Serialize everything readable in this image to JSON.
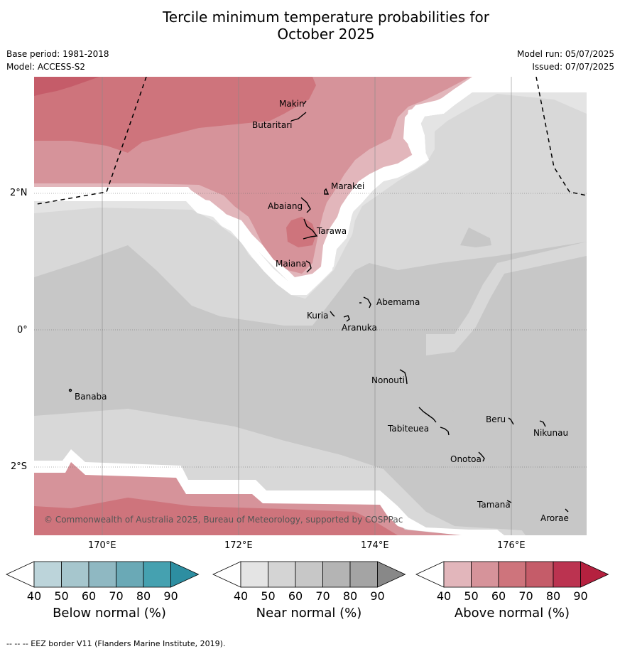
{
  "header": {
    "title_line1": "Tercile minimum temperature probabilities for",
    "title_line2": "October 2025",
    "base_period": "Base period: 1981-2018",
    "model": "Model: ACCESS-S2",
    "model_run": "Model run: 05/07/2025",
    "issued": "Issued: 07/07/2025"
  },
  "map": {
    "lat_labels": [
      "2°N",
      "0°",
      "2°S"
    ],
    "lon_labels": [
      "170°E",
      "172°E",
      "174°E",
      "176°E"
    ],
    "places": [
      "Makin",
      "Butaritari",
      "Marakei",
      "Abaiang",
      "Tarawa",
      "Maiana",
      "Abemama",
      "Kuria",
      "Aranuka",
      "Nonouti",
      "Banaba",
      "Beru",
      "Tabiteuea",
      "Nikunau",
      "Onotoa",
      "Tamana",
      "Arorae"
    ],
    "copyright": "© Commonwealth of Australia 2025, Bureau of Meteorology, supported by COSPPac"
  },
  "colorbars": [
    {
      "label": "Below normal (%)",
      "ticks": [
        "40",
        "50",
        "60",
        "70",
        "80",
        "90"
      ],
      "colors": [
        "#ffffff",
        "#bcd4da",
        "#a6c6cd",
        "#8fb8c2",
        "#6aa9b6",
        "#45a1b0",
        "#2d8ea1"
      ]
    },
    {
      "label": "Near normal (%)",
      "ticks": [
        "40",
        "50",
        "60",
        "70",
        "80",
        "90"
      ],
      "colors": [
        "#ffffff",
        "#e4e4e4",
        "#d4d4d4",
        "#c7c7c7",
        "#b4b4b4",
        "#a4a4a4",
        "#888888"
      ]
    },
    {
      "label": "Above normal (%)",
      "ticks": [
        "40",
        "50",
        "60",
        "70",
        "80",
        "90"
      ],
      "colors": [
        "#ffffff",
        "#e2b6bb",
        "#d6939a",
        "#ce747c",
        "#c55c69",
        "#bb3350",
        "#b5213f"
      ]
    }
  ],
  "footer": "--  --  -- EEZ border V11 (Flanders Marine Institute, 2019)."
}
